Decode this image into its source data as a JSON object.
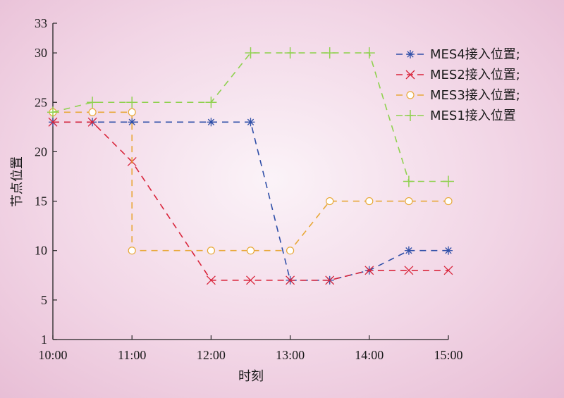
{
  "chart_data": {
    "type": "line",
    "xlabel": "时刻",
    "ylabel": "节点位置",
    "x": [
      "10:00",
      "10:30",
      "11:00",
      "11:30",
      "12:00",
      "12:30",
      "13:00",
      "13:30",
      "14:00",
      "14:30",
      "15:00"
    ],
    "xticks": [
      "10:00",
      "11:00",
      "12:00",
      "13:00",
      "14:00",
      "15:00"
    ],
    "ylim": [
      1,
      33
    ],
    "yticks": [
      1,
      5,
      10,
      15,
      20,
      25,
      30,
      33
    ],
    "grid": false,
    "legend_position": "top-right",
    "series": [
      {
        "name": "MES4接入位置;",
        "color": "#2f4fa8",
        "marker": "asterisk",
        "x": [
          "10:00",
          "10:30",
          "11:00",
          "12:00",
          "12:30",
          "13:00",
          "13:30",
          "14:00",
          "14:30",
          "15:00"
        ],
        "values": [
          23,
          23,
          23,
          23,
          23,
          7,
          7,
          8,
          10,
          10
        ]
      },
      {
        "name": "MES2接入位置;",
        "color": "#d9263c",
        "marker": "x",
        "x": [
          "10:00",
          "10:30",
          "11:00",
          "12:00",
          "12:30",
          "13:00",
          "13:30",
          "14:00",
          "14:30",
          "15:00"
        ],
        "values": [
          23,
          23,
          19,
          7,
          7,
          7,
          7,
          8,
          8,
          8
        ]
      },
      {
        "name": "MES3接入位置;",
        "color": "#e8a838",
        "marker": "circle",
        "x": [
          "10:00",
          "10:30",
          "11:00",
          "11:00",
          "12:00",
          "12:30",
          "13:00",
          "13:30",
          "14:00",
          "14:30",
          "15:00"
        ],
        "values": [
          24,
          24,
          24,
          10,
          10,
          10,
          10,
          15,
          15,
          15,
          15
        ]
      },
      {
        "name": "MES1接入位置",
        "color": "#8fd14f",
        "marker": "plus",
        "x": [
          "10:00",
          "10:30",
          "11:00",
          "12:00",
          "12:30",
          "13:00",
          "13:30",
          "14:00",
          "14:30",
          "15:00"
        ],
        "values": [
          24,
          25,
          25,
          25,
          30,
          30,
          30,
          30,
          17,
          17
        ]
      }
    ]
  }
}
